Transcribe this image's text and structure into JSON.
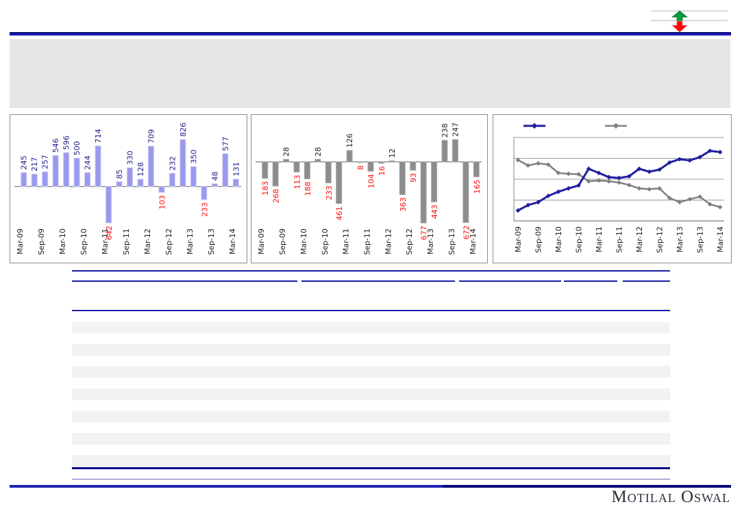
{
  "theme": {
    "navy": "#00008b",
    "rule_blue": "#1a1aa6",
    "band_gray": "#e6e6e6",
    "stripe_gray": "#f2f2f2",
    "chart_border": "#8c8c8c",
    "axis_gray": "#7f7f7f"
  },
  "top_right_indicator": {
    "up_arrow_color": "#0a9b3d",
    "down_arrow_color": "#fb0606",
    "line_color": "#b3b3b3"
  },
  "chart_data": [
    {
      "type": "bar",
      "title": "",
      "bar_color": "#9a99ec",
      "bar_edge_color": "#c9c9f6",
      "positive_label_color": "#1c1c8a",
      "negative_label_color": "#fd0d0d",
      "values": [
        245,
        217,
        257,
        546,
        596,
        500,
        244,
        714,
        -642,
        85,
        330,
        128,
        709,
        -103,
        232,
        826,
        350,
        -233,
        48,
        577,
        131
      ],
      "x_tick_labels": [
        "Mar-09",
        "Sep-09",
        "Mar-10",
        "Sep-10",
        "Mar-11",
        "Sep-11",
        "Mar-12",
        "Sep-12",
        "Mar-13",
        "Sep-13",
        "Mar-14"
      ],
      "tick_every": 2,
      "grid": false,
      "data_labels": true
    },
    {
      "type": "bar",
      "title": "",
      "bar_color": "#8c8c8c",
      "bar_edge_color": "#a8a8a8",
      "positive_label_color": "#262626",
      "negative_label_color": "#fd0d0d",
      "values": [
        -183,
        -268,
        28,
        -113,
        -188,
        28,
        -233,
        -461,
        126,
        -8,
        -104,
        -16,
        12,
        -363,
        -93,
        -677,
        -443,
        238,
        247,
        -672,
        -165
      ],
      "x_tick_labels": [
        "Mar-09",
        "Sep-09",
        "Mar-10",
        "Sep-10",
        "Mar-11",
        "Sep-11",
        "Mar-12",
        "Sep-12",
        "Mar-13",
        "Sep-13",
        "Mar-14"
      ],
      "tick_every": 2,
      "grid": false,
      "data_labels": true
    },
    {
      "type": "line",
      "title": "",
      "ylim": [
        0,
        100
      ],
      "gridline_values": [
        25,
        50,
        75,
        100
      ],
      "grid": true,
      "legend": {
        "position": "top",
        "entries": [
          {
            "marker": "diamond",
            "color": "#1f1f9e",
            "label": ""
          },
          {
            "marker": "diamond",
            "color": "#808080",
            "label": ""
          }
        ]
      },
      "series": [
        {
          "name": "gray-series",
          "color": "#808080",
          "stroke_width": 2.5,
          "values": [
            73,
            66.5,
            69,
            67.5,
            57.5,
            56.5,
            56,
            47.5,
            48.5,
            47.5,
            46,
            43,
            39,
            38,
            39,
            27.5,
            22.5,
            26,
            29,
            20,
            16.5
          ]
        },
        {
          "name": "blue-series",
          "color": "#1f1f9e",
          "stroke_width": 3,
          "values": [
            12.5,
            19,
            22.5,
            30,
            35,
            39,
            42.5,
            62.5,
            57.5,
            52.5,
            51.5,
            53.5,
            62.5,
            59,
            61.5,
            70,
            74,
            72.5,
            76.5,
            84,
            82.5
          ]
        }
      ],
      "x_tick_labels": [
        "Mar-09",
        "Sep-09",
        "Mar-10",
        "Sep-10",
        "Mar-11",
        "Sep-11",
        "Mar-12",
        "Sep-12",
        "Mar-13",
        "Sep-13",
        "Mar-14"
      ],
      "tick_every": 2
    }
  ],
  "footer": {
    "logo_text": "Motilal Oswal"
  }
}
